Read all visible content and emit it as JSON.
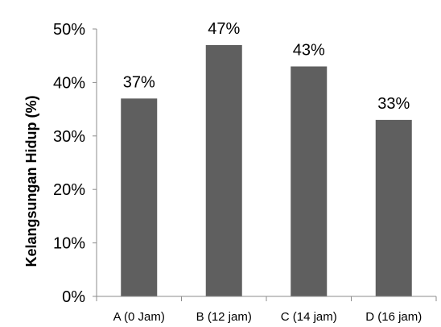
{
  "chart_data": {
    "type": "bar",
    "title": "",
    "xlabel": "",
    "ylabel": "Kelangsungan Hidup (%)",
    "categories": [
      "A (0 Jam)",
      "B (12 jam)",
      "C (14 jam)",
      "D (16 jam)"
    ],
    "values": [
      37,
      47,
      43,
      33
    ],
    "data_labels": [
      "37%",
      "47%",
      "43%",
      "33%"
    ],
    "yticks": [
      0,
      10,
      20,
      30,
      40,
      50
    ],
    "ytick_labels": [
      "0%",
      "10%",
      "20%",
      "30%",
      "40%",
      "50%"
    ],
    "ylim": [
      0,
      50
    ],
    "grid": false,
    "legend": "none",
    "bar_color": "#5f5f5f"
  }
}
